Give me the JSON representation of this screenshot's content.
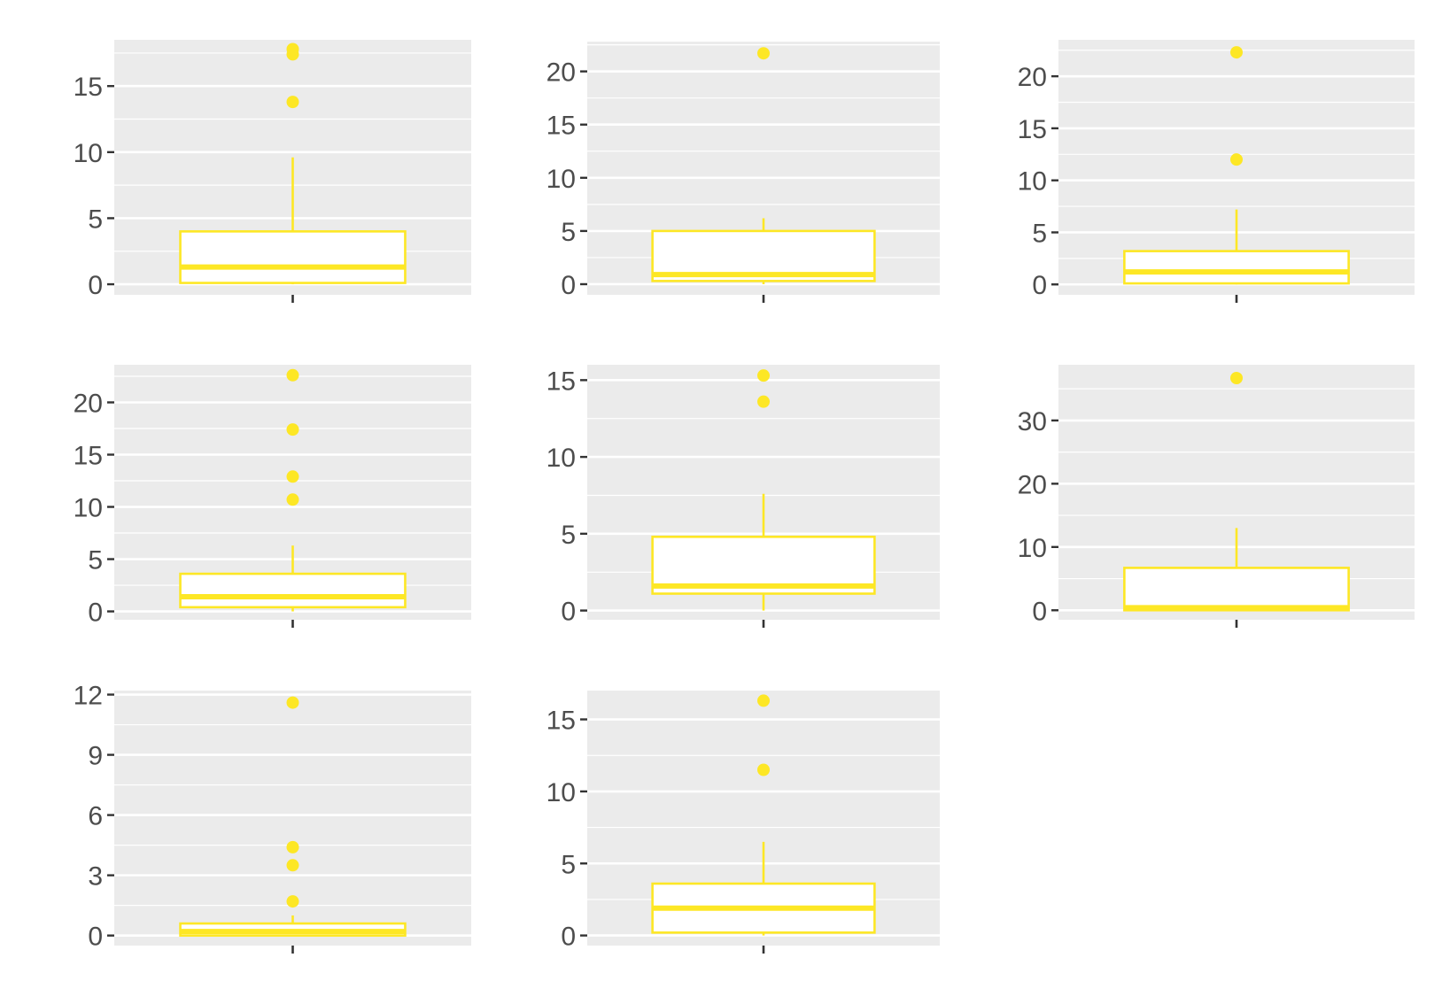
{
  "colors": {
    "panel_background": "#ebebeb",
    "grid_line": "#ffffff",
    "box_stroke": "#fde725",
    "box_fill": "#ffffff",
    "whisker": "#fde725",
    "outlier": "#fde725",
    "tick_mark": "#333333",
    "tick_label": "#4d4d4d"
  },
  "chart_data": [
    {
      "type": "boxplot",
      "ylim": [
        -0.8,
        18.5
      ],
      "y_ticks": [
        0,
        5,
        10,
        15
      ],
      "y_tick_labels": [
        "0",
        "5",
        "10",
        "15"
      ],
      "box": {
        "min": 0,
        "q1": 0.1,
        "median": 1.3,
        "q3": 4.0,
        "max": 9.6
      },
      "outliers": [
        17.8,
        17.4,
        13.8
      ]
    },
    {
      "type": "boxplot",
      "ylim": [
        -1.0,
        22.8
      ],
      "y_ticks": [
        0,
        5,
        10,
        15,
        20
      ],
      "y_tick_labels": [
        "0",
        "5",
        "10",
        "15",
        "20"
      ],
      "box": {
        "min": 0,
        "q1": 0.3,
        "median": 0.9,
        "q3": 5.0,
        "max": 6.2
      },
      "outliers": [
        21.7
      ]
    },
    {
      "type": "boxplot",
      "ylim": [
        -1.0,
        23.5
      ],
      "y_ticks": [
        0,
        5,
        10,
        15,
        20
      ],
      "y_tick_labels": [
        "0",
        "5",
        "10",
        "15",
        "20"
      ],
      "box": {
        "min": 0,
        "q1": 0.1,
        "median": 1.2,
        "q3": 3.2,
        "max": 7.2
      },
      "outliers": [
        22.3,
        12.0
      ]
    },
    {
      "type": "boxplot",
      "ylim": [
        -0.8,
        23.6
      ],
      "y_ticks": [
        0,
        5,
        10,
        15,
        20
      ],
      "y_tick_labels": [
        "0",
        "5",
        "10",
        "15",
        "20"
      ],
      "box": {
        "min": 0,
        "q1": 0.4,
        "median": 1.4,
        "q3": 3.6,
        "max": 6.3
      },
      "outliers": [
        22.6,
        17.4,
        12.9,
        10.7
      ]
    },
    {
      "type": "boxplot",
      "ylim": [
        -0.6,
        16.0
      ],
      "y_ticks": [
        0,
        5,
        10,
        15
      ],
      "y_tick_labels": [
        "0",
        "5",
        "10",
        "15"
      ],
      "box": {
        "min": 0,
        "q1": 1.1,
        "median": 1.6,
        "q3": 4.8,
        "max": 7.6
      },
      "outliers": [
        15.3,
        13.6
      ]
    },
    {
      "type": "boxplot",
      "ylim": [
        -1.5,
        38.8
      ],
      "y_ticks": [
        0,
        10,
        20,
        30
      ],
      "y_tick_labels": [
        "0",
        "10",
        "20",
        "30"
      ],
      "box": {
        "min": 0,
        "q1": 0.0,
        "median": 0.4,
        "q3": 6.7,
        "max": 13.0
      },
      "outliers": [
        36.7
      ]
    },
    {
      "type": "boxplot",
      "ylim": [
        -0.5,
        12.2
      ],
      "y_ticks": [
        0,
        3,
        6,
        9,
        12
      ],
      "y_tick_labels": [
        "0",
        "3",
        "6",
        "9",
        "12"
      ],
      "box": {
        "min": 0,
        "q1": 0.0,
        "median": 0.2,
        "q3": 0.6,
        "max": 1.0
      },
      "outliers": [
        11.6,
        4.4,
        3.5,
        1.7
      ]
    },
    {
      "type": "boxplot",
      "ylim": [
        -0.7,
        17.0
      ],
      "y_ticks": [
        0,
        5,
        10,
        15
      ],
      "y_tick_labels": [
        "0",
        "5",
        "10",
        "15"
      ],
      "box": {
        "min": 0,
        "q1": 0.2,
        "median": 1.9,
        "q3": 3.6,
        "max": 6.5
      },
      "outliers": [
        16.3,
        11.5
      ]
    }
  ]
}
